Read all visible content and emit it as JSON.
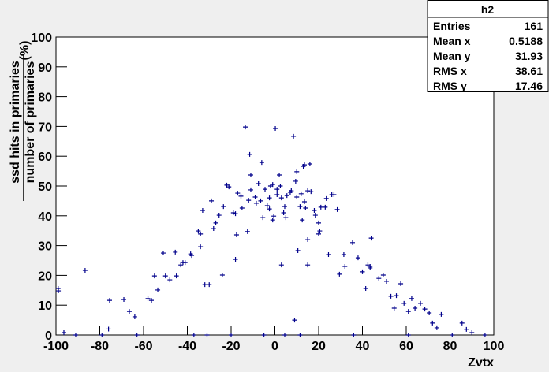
{
  "chart_data": {
    "type": "scatter",
    "x_label": "Zvtx",
    "y_label": {
      "numerator": "ssd hits in primaries",
      "denominator": "number of primaries",
      "unit": "(%)"
    },
    "stats": {
      "title": "h2",
      "rows": [
        {
          "label": "Entries",
          "value": 161
        },
        {
          "label": "Mean x",
          "value": 0.5188
        },
        {
          "label": "Mean y",
          "value": 31.93
        },
        {
          "label": "RMS x",
          "value": 38.61
        },
        {
          "label": "RMS y",
          "value": 17.46
        }
      ]
    },
    "color": "#00008b",
    "xlim": [
      -100,
      100
    ],
    "ylim": [
      0,
      100
    ],
    "xticks": [
      -100,
      -80,
      -60,
      -40,
      -20,
      0,
      20,
      40,
      60,
      80,
      100
    ],
    "yticks": [
      0,
      10,
      20,
      30,
      40,
      50,
      60,
      70,
      80,
      90,
      100
    ],
    "x": [
      -98.9,
      -99,
      -96.4,
      -86.7,
      -75.5,
      -76,
      -69,
      -66.5,
      -64,
      -58,
      -56.4,
      -55,
      -53.5,
      -51,
      -50,
      -48,
      -45.5,
      -45,
      -43,
      -42,
      -41,
      -38.5,
      -38,
      -35,
      -34,
      -34,
      -33,
      -32,
      -30,
      -29,
      -28,
      -27,
      -25.5,
      -24,
      -23.5,
      -22,
      -21,
      -19,
      -18,
      -18,
      -17.5,
      -17,
      -15.5,
      -15,
      -13.5,
      -12,
      -12.5,
      -11.5,
      -11,
      -11,
      -9,
      -8.5,
      -7.5,
      -6.5,
      -6,
      -5.5,
      -4.5,
      -3.5,
      -2.5,
      -2.5,
      -2,
      -1,
      -1,
      -0.5,
      0.2,
      1,
      1,
      2,
      2.5,
      3,
      3,
      4,
      4.5,
      5,
      5.5,
      7,
      7.5,
      8.5,
      9,
      9.5,
      10,
      10,
      10.5,
      11.5,
      12,
      13,
      12.5,
      13.5,
      13.5,
      14,
      15,
      15,
      15,
      16,
      16.5,
      18,
      18.5,
      20,
      20,
      20.5,
      21,
      23,
      23.5,
      24.5,
      26,
      27,
      28.5,
      29.5,
      31.5,
      32,
      35.5,
      38,
      40,
      41.5,
      42.5,
      43.5,
      43.5,
      44,
      47.5,
      49.5,
      51,
      53,
      55.5,
      54.5,
      57.5,
      59,
      61,
      62.5,
      64,
      66.5,
      68.5,
      70.5,
      72,
      74,
      76,
      85.5,
      87.5,
      90,
      -91,
      -79,
      -63,
      -37,
      -31,
      -20,
      -5,
      4.5,
      11.5,
      36,
      61,
      81,
      96
    ],
    "values": [
      14.8,
      15.6,
      0.8,
      21.7,
      11.6,
      2,
      11.9,
      7.9,
      6.1,
      12.2,
      11.6,
      19.8,
      15.1,
      27.5,
      19.8,
      18.5,
      27.8,
      19.8,
      23.5,
      24.3,
      24.3,
      27.2,
      26.7,
      34.9,
      33.9,
      29.6,
      41.8,
      16.9,
      16.9,
      45,
      35.7,
      37.6,
      40.2,
      20.1,
      43.1,
      50.3,
      49.7,
      41,
      40.7,
      25.4,
      33.6,
      47.6,
      46.6,
      42.6,
      69.8,
      45.2,
      34.7,
      60.6,
      53.7,
      48.7,
      46.3,
      44.2,
      50.8,
      45,
      57.9,
      39.4,
      48.9,
      43.4,
      46,
      42.3,
      50,
      50.5,
      38.6,
      39.9,
      69.3,
      47.1,
      48.9,
      53.7,
      50,
      23.5,
      46,
      41,
      43.1,
      39.4,
      46.8,
      47.9,
      48.4,
      66.7,
      5,
      51.6,
      54.8,
      46.3,
      28.3,
      43.1,
      47.4,
      56.6,
      38.6,
      57.1,
      44.7,
      42.6,
      48.4,
      32,
      23.5,
      57.4,
      48.1,
      41.8,
      40.2,
      37.6,
      33.9,
      34.9,
      42.9,
      42.9,
      45.8,
      27,
      47.1,
      47.1,
      42.1,
      20.4,
      27,
      23,
      31,
      25.9,
      21.2,
      15.6,
      23.5,
      23,
      22.5,
      32.5,
      19,
      20.1,
      18,
      13,
      13.2,
      9,
      17.2,
      10.6,
      7.9,
      12.2,
      9,
      10.6,
      8.7,
      7.4,
      4,
      2.4,
      6.9,
      4,
      1.9,
      0.8,
      0,
      0,
      0,
      0,
      0,
      0,
      0,
      0,
      0,
      0,
      0,
      0,
      0
    ]
  }
}
